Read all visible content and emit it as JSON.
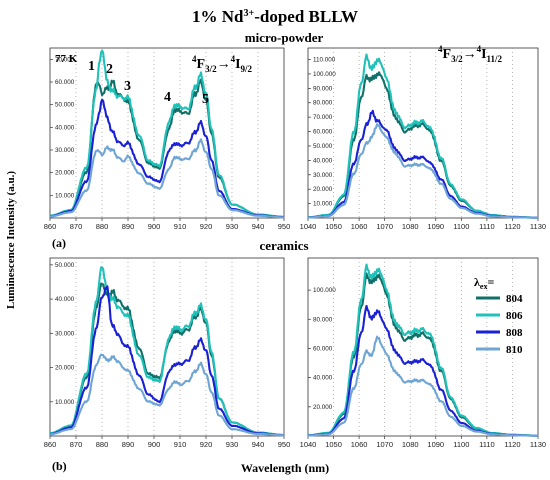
{
  "figure": {
    "title": "1% Nd",
    "title_sup": "3+",
    "title_tail": "-doped BLLW",
    "row_titles": [
      "micro-powder",
      "ceramics"
    ],
    "panel_letters": [
      "(a)",
      "(b)"
    ],
    "ylabel": "Luminescence Intensity (a.u.)",
    "xlabel": "Wavelength (nm)",
    "temperature_label": "77 K",
    "peak_labels": [
      "1",
      "2",
      "3",
      "4",
      "5"
    ],
    "transition_left": {
      "main": "4",
      "f": "F",
      "fsub": "3/2",
      "arrow": "→",
      "sup": "4",
      "i": "I",
      "isub": "9/2"
    },
    "transition_right": {
      "main": "4",
      "f": "F",
      "fsub": "3/2",
      "arrow": "→",
      "sup": "4",
      "i": "I",
      "isub": "11/2"
    },
    "legend_title_main": "λ",
    "legend_title_sub": "ex",
    "legend_title_tail": "="
  },
  "colors": {
    "804": "#12706a",
    "806": "#1fc1b8",
    "808": "#1a20d4",
    "810": "#6fa5d4"
  },
  "chart_data": [
    {
      "type": "line",
      "panel": "a-left",
      "xlim": [
        860,
        950
      ],
      "ylim": [
        0,
        75000
      ],
      "xticks": [
        860,
        870,
        880,
        890,
        900,
        910,
        920,
        930,
        940,
        950
      ],
      "yticks": [
        10000,
        20000,
        30000,
        40000,
        50000,
        60000,
        70000
      ],
      "ytick_labels": [
        "10.000",
        "20.000",
        "30.000",
        "40.000",
        "50.000",
        "60.000",
        "70.000"
      ],
      "x": [
        860,
        868,
        874,
        878,
        879,
        880,
        882,
        884,
        886,
        888,
        890,
        894,
        898,
        902,
        906,
        908,
        910,
        913,
        916,
        918,
        920,
        922,
        925,
        930,
        940,
        950
      ],
      "series": [
        {
          "name": "804",
          "values": [
            1000,
            3500,
            20000,
            60000,
            58000,
            55000,
            57000,
            60000,
            55000,
            53000,
            51000,
            35000,
            24000,
            22000,
            40000,
            48000,
            47000,
            46000,
            55000,
            60000,
            52000,
            38000,
            18000,
            6000,
            1500,
            500
          ]
        },
        {
          "name": "806",
          "values": [
            1000,
            3500,
            22000,
            58000,
            68000,
            75000,
            60000,
            56000,
            54000,
            53000,
            53000,
            37000,
            25000,
            23000,
            43000,
            50000,
            49000,
            48000,
            58000,
            63000,
            55000,
            40000,
            19000,
            6000,
            1500,
            500
          ]
        },
        {
          "name": "808",
          "values": [
            800,
            3000,
            16000,
            42000,
            46000,
            53000,
            44000,
            38000,
            34000,
            32000,
            33000,
            24000,
            18000,
            16000,
            30000,
            33000,
            32000,
            33000,
            38000,
            42000,
            36000,
            26000,
            12000,
            4000,
            1200,
            400
          ]
        },
        {
          "name": "810",
          "values": [
            700,
            2500,
            12000,
            30000,
            29000,
            28000,
            31000,
            30000,
            27000,
            25000,
            27000,
            20000,
            15000,
            13000,
            22000,
            27000,
            26000,
            26000,
            30000,
            34000,
            29000,
            22000,
            10000,
            3500,
            1000,
            300
          ]
        }
      ]
    },
    {
      "type": "line",
      "panel": "a-right",
      "xlim": [
        1040,
        1130
      ],
      "ylim": [
        0,
        118000
      ],
      "xticks": [
        1040,
        1050,
        1060,
        1070,
        1080,
        1090,
        1100,
        1110,
        1120,
        1130
      ],
      "yticks": [
        10000,
        20000,
        30000,
        40000,
        50000,
        60000,
        70000,
        80000,
        90000,
        100000,
        110000
      ],
      "ytick_labels": [
        "10.000",
        "20.000",
        "30.000",
        "40.000",
        "50.000",
        "60.000",
        "70.000",
        "80.000",
        "90.000",
        "100.000",
        "110.000"
      ],
      "x": [
        1040,
        1048,
        1054,
        1058,
        1061,
        1063,
        1065,
        1067,
        1069,
        1071,
        1074,
        1078,
        1082,
        1085,
        1088,
        1092,
        1096,
        1100,
        1106,
        1112,
        1120,
        1130
      ],
      "series": [
        {
          "name": "804",
          "values": [
            500,
            2000,
            15000,
            55000,
            85000,
            98000,
            96000,
            100000,
            98000,
            88000,
            70000,
            60000,
            64000,
            65000,
            60000,
            40000,
            22000,
            12000,
            5000,
            2000,
            800,
            300
          ]
        },
        {
          "name": "806",
          "values": [
            500,
            2200,
            16000,
            60000,
            95000,
            112000,
            103000,
            110000,
            106000,
            95000,
            74000,
            63000,
            66000,
            67000,
            62000,
            42000,
            23000,
            13000,
            5000,
            2000,
            800,
            300
          ]
        },
        {
          "name": "808",
          "values": [
            400,
            1500,
            11000,
            38000,
            55000,
            65000,
            73000,
            68000,
            64000,
            60000,
            48000,
            40000,
            42000,
            42000,
            38000,
            27000,
            15000,
            8000,
            3500,
            1500,
            600,
            200
          ]
        },
        {
          "name": "810",
          "values": [
            300,
            1300,
            9000,
            31000,
            45000,
            52000,
            56000,
            65000,
            60000,
            55000,
            45000,
            36000,
            37000,
            37000,
            34000,
            24000,
            13000,
            7000,
            3000,
            1200,
            500,
            200
          ]
        }
      ]
    },
    {
      "type": "line",
      "panel": "b-left",
      "xlim": [
        860,
        950
      ],
      "ylim": [
        0,
        52000
      ],
      "xticks": [
        860,
        870,
        880,
        890,
        900,
        910,
        920,
        930,
        940,
        950
      ],
      "yticks": [
        10000,
        20000,
        30000,
        40000,
        50000
      ],
      "ytick_labels": [
        "10.000",
        "20.000",
        "30.000",
        "40.000",
        "50.000"
      ],
      "x": [
        860,
        868,
        874,
        878,
        880,
        882,
        884,
        886,
        888,
        890,
        894,
        898,
        902,
        906,
        908,
        910,
        913,
        916,
        918,
        920,
        922,
        925,
        930,
        940,
        950
      ],
      "series": [
        {
          "name": "804",
          "values": [
            800,
            3000,
            17000,
            38000,
            45000,
            41000,
            42000,
            40000,
            38000,
            37000,
            26000,
            18000,
            17000,
            28000,
            31000,
            30000,
            31000,
            35000,
            37000,
            33000,
            24000,
            11000,
            4000,
            1000,
            300
          ]
        },
        {
          "name": "806",
          "values": [
            800,
            3000,
            18000,
            40000,
            50000,
            42000,
            40000,
            38000,
            36000,
            35000,
            24000,
            17000,
            16000,
            29000,
            32000,
            31000,
            32000,
            36000,
            38000,
            34000,
            25000,
            11000,
            4000,
            1000,
            300
          ]
        },
        {
          "name": "808",
          "values": [
            600,
            2500,
            14000,
            32000,
            41000,
            43000,
            32000,
            30000,
            27000,
            26000,
            18000,
            12000,
            10000,
            19000,
            21000,
            21000,
            22000,
            26000,
            28000,
            25000,
            18000,
            8000,
            3000,
            800,
            200
          ]
        },
        {
          "name": "810",
          "values": [
            500,
            2000,
            10000,
            21000,
            24000,
            22000,
            23000,
            22000,
            20000,
            19000,
            14000,
            10000,
            9000,
            14000,
            16000,
            15000,
            16000,
            19000,
            21000,
            18000,
            13000,
            6000,
            2000,
            600,
            200
          ]
        }
      ]
    },
    {
      "type": "line",
      "panel": "b-right",
      "xlim": [
        1040,
        1130
      ],
      "ylim": [
        0,
        122000
      ],
      "xticks": [
        1040,
        1050,
        1060,
        1070,
        1080,
        1090,
        1100,
        1110,
        1120,
        1130
      ],
      "yticks": [
        20000,
        40000,
        60000,
        80000,
        100000
      ],
      "ytick_labels": [
        "20.000",
        "40.000",
        "60.000",
        "80.000",
        "100.000"
      ],
      "x": [
        1040,
        1048,
        1054,
        1058,
        1061,
        1063,
        1065,
        1067,
        1069,
        1071,
        1074,
        1078,
        1082,
        1085,
        1088,
        1092,
        1096,
        1100,
        1106,
        1112,
        1120,
        1130
      ],
      "series": [
        {
          "name": "804",
          "values": [
            500,
            2000,
            15000,
            55000,
            90000,
            110000,
            105000,
            110000,
            106000,
            95000,
            75000,
            66000,
            69000,
            70000,
            66000,
            45000,
            25000,
            13000,
            5000,
            2000,
            800,
            300
          ]
        },
        {
          "name": "806",
          "values": [
            500,
            2200,
            16000,
            58000,
            95000,
            116000,
            108000,
            114000,
            110000,
            98000,
            78000,
            70000,
            72000,
            73000,
            69000,
            47000,
            26000,
            14000,
            5500,
            2000,
            800,
            300
          ]
        },
        {
          "name": "808",
          "values": [
            400,
            1500,
            12000,
            45000,
            72000,
            88000,
            80000,
            86000,
            80000,
            72000,
            58000,
            50000,
            51000,
            52000,
            48000,
            32000,
            17000,
            9000,
            3500,
            1500,
            600,
            200
          ]
        },
        {
          "name": "810",
          "values": [
            300,
            1200,
            9000,
            33000,
            50000,
            58000,
            55000,
            68000,
            62000,
            55000,
            44000,
            37000,
            38000,
            38000,
            35000,
            24000,
            13000,
            7000,
            3000,
            1200,
            500,
            200
          ]
        }
      ]
    }
  ],
  "legend": [
    "804",
    "806",
    "808",
    "810"
  ]
}
